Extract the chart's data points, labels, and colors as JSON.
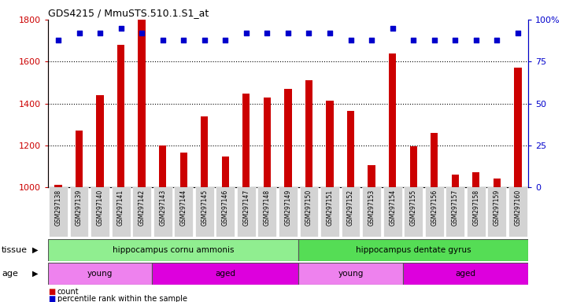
{
  "title": "GDS4215 / MmuSTS.510.1.S1_at",
  "samples": [
    "GSM297138",
    "GSM297139",
    "GSM297140",
    "GSM297141",
    "GSM297142",
    "GSM297143",
    "GSM297144",
    "GSM297145",
    "GSM297146",
    "GSM297147",
    "GSM297148",
    "GSM297149",
    "GSM297150",
    "GSM297151",
    "GSM297152",
    "GSM297153",
    "GSM297154",
    "GSM297155",
    "GSM297156",
    "GSM297157",
    "GSM297158",
    "GSM297159",
    "GSM297160"
  ],
  "counts": [
    1010,
    1270,
    1440,
    1680,
    1800,
    1200,
    1165,
    1340,
    1148,
    1448,
    1430,
    1470,
    1510,
    1415,
    1365,
    1105,
    1640,
    1195,
    1260,
    1060,
    1073,
    1040,
    1570
  ],
  "percentiles": [
    88,
    92,
    92,
    95,
    92,
    88,
    88,
    88,
    88,
    92,
    92,
    92,
    92,
    92,
    88,
    88,
    95,
    88,
    88,
    88,
    88,
    88,
    92
  ],
  "ylim_left": [
    1000,
    1800
  ],
  "ylim_right": [
    0,
    100
  ],
  "yticks_left": [
    1000,
    1200,
    1400,
    1600,
    1800
  ],
  "yticks_right": [
    0,
    25,
    50,
    75,
    100
  ],
  "bar_color": "#cc0000",
  "dot_color": "#0000cc",
  "tissue_groups": [
    {
      "label": "hippocampus cornu ammonis",
      "start": 0,
      "end": 12,
      "color": "#90ee90"
    },
    {
      "label": "hippocampus dentate gyrus",
      "start": 12,
      "end": 23,
      "color": "#55dd55"
    }
  ],
  "age_groups": [
    {
      "label": "young",
      "start": 0,
      "end": 5,
      "color": "#ee82ee"
    },
    {
      "label": "aged",
      "start": 5,
      "end": 12,
      "color": "#dd00dd"
    },
    {
      "label": "young",
      "start": 12,
      "end": 17,
      "color": "#ee82ee"
    },
    {
      "label": "aged",
      "start": 17,
      "end": 23,
      "color": "#dd00dd"
    }
  ],
  "tissue_label": "tissue",
  "age_label": "age",
  "legend_count_label": "count",
  "legend_pct_label": "percentile rank within the sample",
  "plot_bg_color": "#ffffff",
  "xtick_bg_color": "#d3d3d3",
  "right_axis_color": "#0000cc",
  "left_axis_color": "#cc0000",
  "grid_color": "#000000",
  "bar_baseline": 1000
}
